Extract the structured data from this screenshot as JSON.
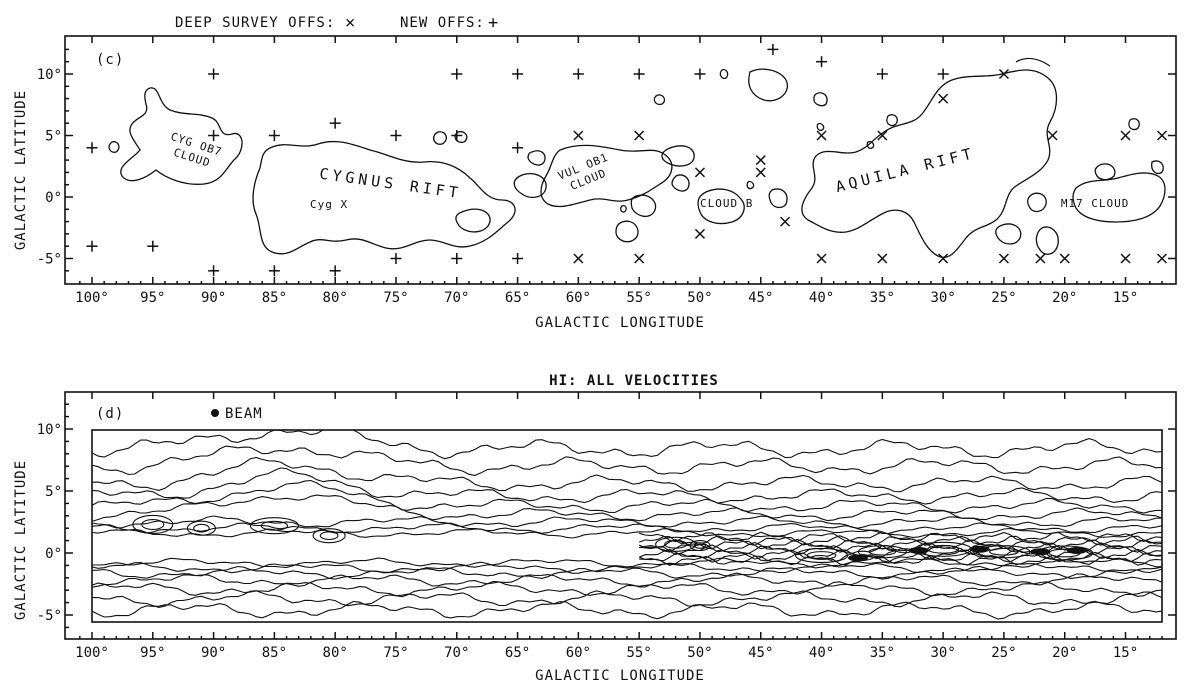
{
  "chart_data": [
    {
      "type": "contour",
      "legend": {
        "deep_survey_label": "DEEP SURVEY OFFS:",
        "deep_survey_symbol": "×",
        "new_offs_label": "NEW OFFS:",
        "new_offs_symbol": "+"
      },
      "panel_label": "(c)",
      "xlabel": "GALACTIC LONGITUDE",
      "ylabel": "GALACTIC LATITUDE",
      "xlim": [
        102,
        12
      ],
      "ylim": [
        -7,
        12.5
      ],
      "x_ticks": [
        100,
        95,
        90,
        85,
        80,
        75,
        70,
        65,
        60,
        55,
        50,
        45,
        40,
        35,
        30,
        25,
        20,
        15
      ],
      "x_tick_labels": [
        "100°",
        "95°",
        "90°",
        "85°",
        "80°",
        "75°",
        "70°",
        "65°",
        "60°",
        "55°",
        "50°",
        "45°",
        "40°",
        "35°",
        "30°",
        "25°",
        "20°",
        "15°"
      ],
      "y_ticks": [
        10,
        5,
        0,
        -5
      ],
      "y_tick_labels": [
        "10°",
        "5°",
        "0°",
        "-5°"
      ],
      "region_labels": [
        {
          "lines": [
            "CYG OB7",
            "CLOUD"
          ],
          "l": 91.5,
          "b": 4.0,
          "rotate": 18
        },
        {
          "lines": [
            "CYGNUS RIFT"
          ],
          "l": 75.5,
          "b": 0.7,
          "rotate": 8,
          "big": true
        },
        {
          "lines": [
            "Cyg X"
          ],
          "l": 80.5,
          "b": -0.9,
          "rotate": 0
        },
        {
          "lines": [
            "VUL OB1",
            "CLOUD"
          ],
          "l": 59.5,
          "b": 2.2,
          "rotate": -22
        },
        {
          "lines": [
            "CLOUD B"
          ],
          "l": 47.8,
          "b": -0.8,
          "rotate": 0
        },
        {
          "lines": [
            "AQUILA RIFT"
          ],
          "l": 33.0,
          "b": 1.8,
          "rotate": -14,
          "big": true
        },
        {
          "lines": [
            "M17 CLOUD"
          ],
          "l": 17.5,
          "b": -0.8,
          "rotate": 0
        }
      ],
      "deep_survey_offs": [
        [
          60,
          5
        ],
        [
          55,
          5
        ],
        [
          50,
          2
        ],
        [
          45,
          3
        ],
        [
          45,
          2
        ],
        [
          43,
          -2
        ],
        [
          40,
          5
        ],
        [
          35,
          5
        ],
        [
          30,
          8
        ],
        [
          25,
          10
        ],
        [
          21,
          5
        ],
        [
          15,
          5
        ],
        [
          12,
          5
        ],
        [
          60,
          -5
        ],
        [
          55,
          -5
        ],
        [
          50,
          -3
        ],
        [
          40,
          -5
        ],
        [
          35,
          -5
        ],
        [
          30,
          -5
        ],
        [
          25,
          -5
        ],
        [
          22,
          -5
        ],
        [
          20,
          -5
        ],
        [
          15,
          -5
        ],
        [
          12,
          -5
        ]
      ],
      "new_offs": [
        [
          90,
          10
        ],
        [
          70,
          10
        ],
        [
          65,
          10
        ],
        [
          60,
          10
        ],
        [
          55,
          10
        ],
        [
          50,
          10
        ],
        [
          44,
          12
        ],
        [
          40,
          11
        ],
        [
          35,
          10
        ],
        [
          30,
          10
        ],
        [
          100,
          4
        ],
        [
          90,
          5
        ],
        [
          85,
          5
        ],
        [
          80,
          6
        ],
        [
          75,
          5
        ],
        [
          70,
          5
        ],
        [
          65,
          4
        ],
        [
          100,
          -4
        ],
        [
          95,
          -4
        ],
        [
          90,
          -6
        ],
        [
          85,
          -6
        ],
        [
          80,
          -6
        ],
        [
          75,
          -5
        ],
        [
          70,
          -5
        ],
        [
          65,
          -5
        ]
      ]
    },
    {
      "type": "contour",
      "title": "HI: ALL VELOCITIES",
      "panel_label": "(d)",
      "beam_label": "BEAM",
      "xlabel": "GALACTIC LONGITUDE",
      "ylabel": "GALACTIC LATITUDE",
      "xlim": [
        102,
        12
      ],
      "ylim": [
        -6.5,
        12.5
      ],
      "data_region": {
        "l": [
          100,
          12
        ],
        "b": [
          -5.5,
          10
        ]
      },
      "x_ticks": [
        100,
        95,
        90,
        85,
        80,
        75,
        70,
        65,
        60,
        55,
        50,
        45,
        40,
        35,
        30,
        25,
        20,
        15
      ],
      "x_tick_labels": [
        "100°",
        "95°",
        "90°",
        "85°",
        "80°",
        "75°",
        "70°",
        "65°",
        "60°",
        "55°",
        "50°",
        "45°",
        "40°",
        "35°",
        "30°",
        "25°",
        "20°",
        "15°"
      ],
      "y_ticks": [
        10,
        5,
        0,
        -5
      ],
      "y_tick_labels": [
        "10°",
        "5°",
        "0°",
        "-5°"
      ]
    }
  ]
}
